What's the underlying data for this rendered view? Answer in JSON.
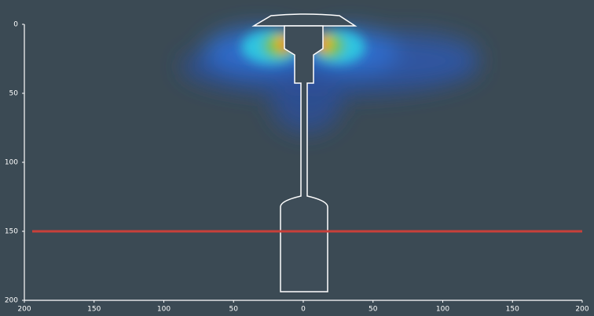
{
  "chart_data": {
    "type": "heatmap",
    "xlim": [
      -200,
      200
    ],
    "xticks": [
      {
        "value": -200,
        "label": "200"
      },
      {
        "value": -150,
        "label": "150"
      },
      {
        "value": -100,
        "label": "100"
      },
      {
        "value": -50,
        "label": "50"
      },
      0,
      50,
      100,
      150,
      200
    ],
    "ylim": [
      0,
      200
    ],
    "yticks": [
      0,
      50,
      100,
      150,
      200
    ],
    "reference_line": {
      "y": 150,
      "color": "#c8403a"
    }
  }
}
